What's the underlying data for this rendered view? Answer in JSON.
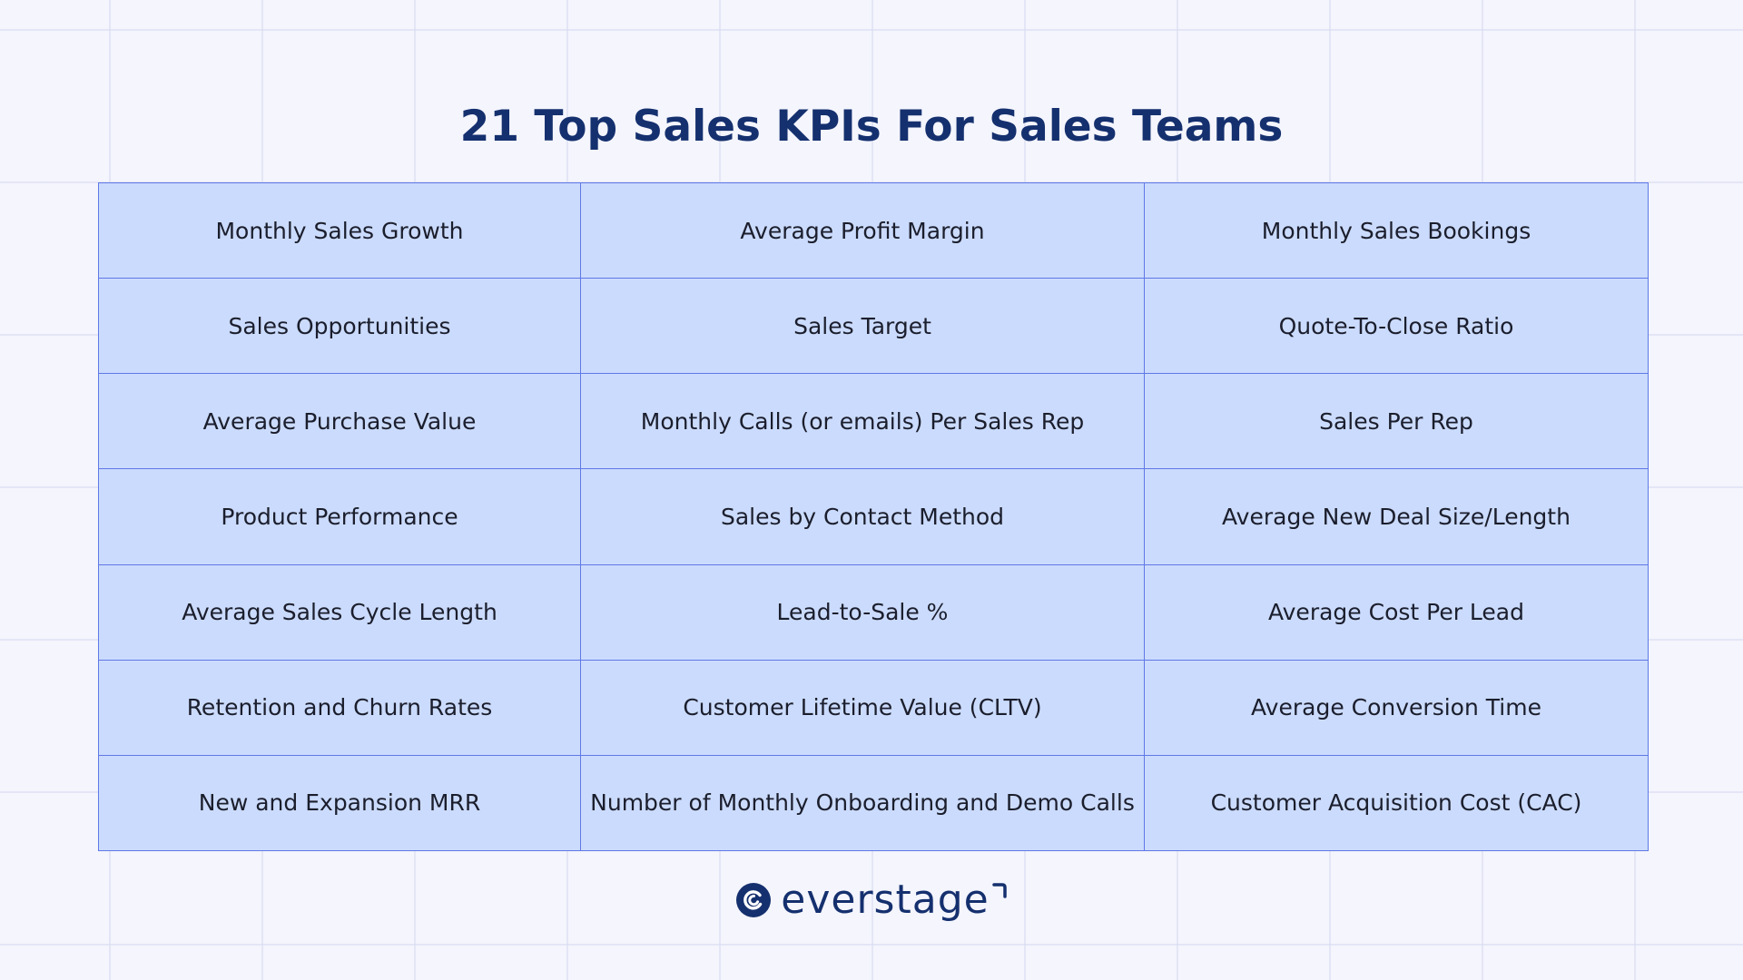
{
  "title": "21 Top Sales KPIs For Sales Teams",
  "rows": [
    [
      "Monthly Sales Growth",
      "Average Profit Margin",
      "Monthly Sales Bookings"
    ],
    [
      "Sales Opportunities",
      "Sales Target",
      "Quote-To-Close Ratio"
    ],
    [
      "Average Purchase Value",
      "Monthly Calls (or emails) Per Sales Rep",
      "Sales Per Rep"
    ],
    [
      "Product Performance",
      "Sales by Contact Method",
      "Average New Deal Size/Length"
    ],
    [
      "Average Sales Cycle Length",
      "Lead-to-Sale %",
      "Average Cost Per Lead"
    ],
    [
      "Retention and Churn Rates",
      "Customer Lifetime Value (CLTV)",
      "Average Conversion Time"
    ],
    [
      "New and Expansion MRR",
      "Number of Monthly Onboarding and Demo Calls",
      "Customer Acquisition Cost (CAC)"
    ]
  ],
  "brand": {
    "name": "everstage",
    "logo_icon": "everstage-logo-icon"
  },
  "colors": {
    "background": "#f4f5fd",
    "title": "#15306e",
    "cell_fill": "#cbdbfd",
    "cell_border": "#6078e6",
    "text": "#1b1e2c"
  }
}
